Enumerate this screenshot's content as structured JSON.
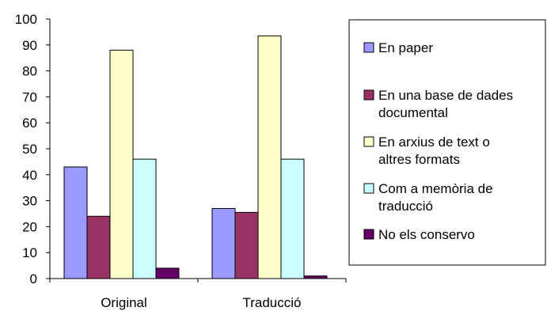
{
  "chart_data": {
    "type": "bar",
    "title": "",
    "xlabel": "",
    "ylabel": "",
    "ylim": [
      0,
      100
    ],
    "yticks": [
      0,
      10,
      20,
      30,
      40,
      50,
      60,
      70,
      80,
      90,
      100
    ],
    "categories": [
      "Original",
      "Traducció"
    ],
    "grid": false,
    "legend_position": "right",
    "series": [
      {
        "name": "En paper",
        "color": "#9999ff",
        "values": [
          43,
          27
        ]
      },
      {
        "name": "En una base de dades documental",
        "color": "#993366",
        "values": [
          24,
          25.5
        ]
      },
      {
        "name": "En arxius de text o altres formats",
        "color": "#ffffcc",
        "values": [
          88,
          93.5
        ]
      },
      {
        "name": "Com a memòria de traducció",
        "color": "#ccffff",
        "values": [
          46,
          46
        ]
      },
      {
        "name": "No els conservo",
        "color": "#660066",
        "values": [
          4,
          1
        ]
      }
    ],
    "legend_lines": [
      [
        "En paper"
      ],
      [
        "En una base de dades",
        "documental"
      ],
      [
        "En arxius de text o",
        "altres formats"
      ],
      [
        "Com a memòria de",
        "traducció"
      ],
      [
        "No els conservo"
      ]
    ]
  }
}
